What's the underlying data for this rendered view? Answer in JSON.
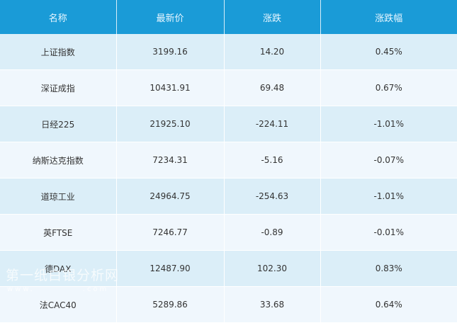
{
  "table": {
    "headers": [
      "名称",
      "最新价",
      "涨跌",
      "涨跌幅"
    ],
    "rows": [
      [
        "上证指数",
        "3199.16",
        "14.20",
        "0.45%"
      ],
      [
        "深证成指",
        "10431.91",
        "69.48",
        "0.67%"
      ],
      [
        "日经225",
        "21925.10",
        "-224.11",
        "-1.01%"
      ],
      [
        "纳斯达克指数",
        "7234.31",
        "-5.16",
        "-0.07%"
      ],
      [
        "道琼工业",
        "24964.75",
        "-254.63",
        "-1.01%"
      ],
      [
        "英FTSE",
        "7246.77",
        "-0.89",
        "-0.01%"
      ],
      [
        "德DAX",
        "12487.90",
        "102.30",
        "0.83%"
      ],
      [
        "法CAC40",
        "5289.86",
        "33.68",
        "0.64%"
      ]
    ]
  },
  "watermark": {
    "text": "第一纸白银分析网",
    "url": "www.            .com"
  },
  "colors": {
    "header": "#1a9bd7",
    "row_odd": "#dbeef8",
    "row_even": "#f0f7fd"
  }
}
